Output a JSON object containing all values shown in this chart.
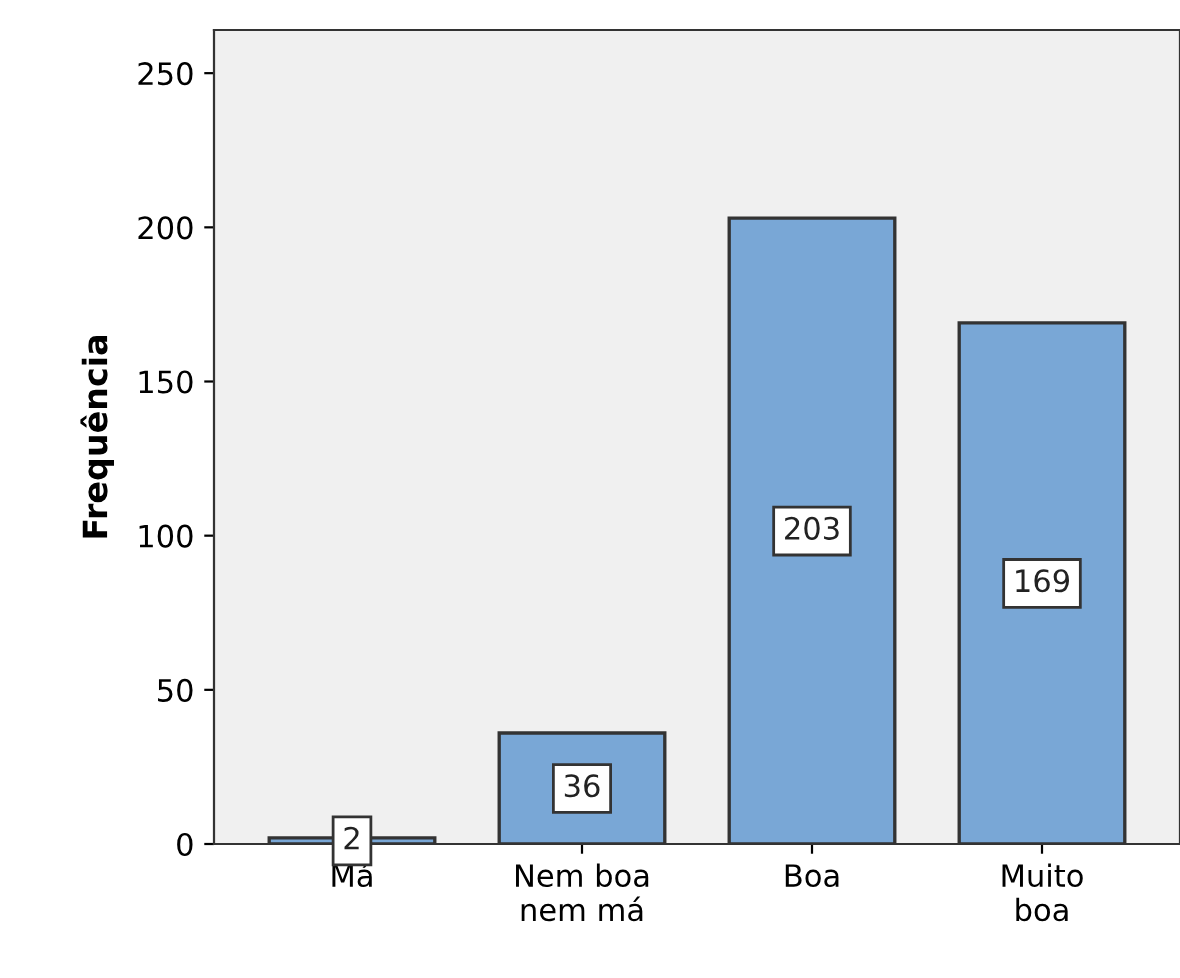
{
  "chart_data": {
    "type": "bar",
    "ylabel": "Frequência",
    "categories": [
      "Má",
      "Nem boa\nnem má",
      "Boa",
      "Muito\nboa"
    ],
    "values": [
      2,
      36,
      203,
      169
    ],
    "color": "#79a7d6",
    "ylim": [
      0,
      264
    ],
    "yticks": [
      0,
      50,
      100,
      150,
      200,
      250
    ],
    "grid": false,
    "data_labels": true
  }
}
